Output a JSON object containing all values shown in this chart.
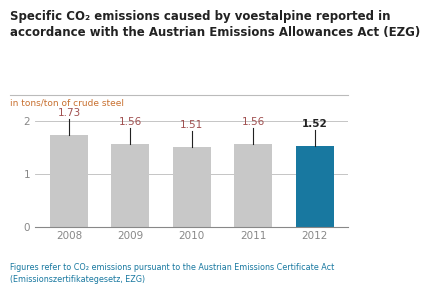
{
  "title": "Specific CO₂ emissions caused by voestalpine reported in\naccordance with the Austrian Emissions Allowances Act (EZG)",
  "subtitle": "in tons/ton of crude steel",
  "categories": [
    "2008",
    "2009",
    "2010",
    "2011",
    "2012"
  ],
  "values": [
    1.73,
    1.56,
    1.51,
    1.56,
    1.52
  ],
  "bar_colors": [
    "#c8c8c8",
    "#c8c8c8",
    "#c8c8c8",
    "#c8c8c8",
    "#1878a0"
  ],
  "label_bold": [
    false,
    false,
    false,
    false,
    true
  ],
  "value_label_color_normal": "#a05050",
  "value_label_color_bold": "#222222",
  "ylim": [
    0,
    2.35
  ],
  "yticks": [
    0,
    1,
    2
  ],
  "title_color": "#222222",
  "title_fontsize": 8.5,
  "subtitle_color": "#c87030",
  "subtitle_fontsize": 6.5,
  "footer_line1": "Figures refer to CO₂ emissions pursuant to the Austrian Emissions Certificate Act",
  "footer_line2": "(Emissionszertifikategesetz, EZG)",
  "footer_color": "#1878a0",
  "footer_fontsize": 5.8,
  "background_color": "#ffffff",
  "grid_color": "#bbbbbb",
  "axis_color": "#888888",
  "tick_label_color": "#888888",
  "tick_fontsize": 7.5,
  "line_color": "#222222",
  "divider_color": "#bbbbbb"
}
